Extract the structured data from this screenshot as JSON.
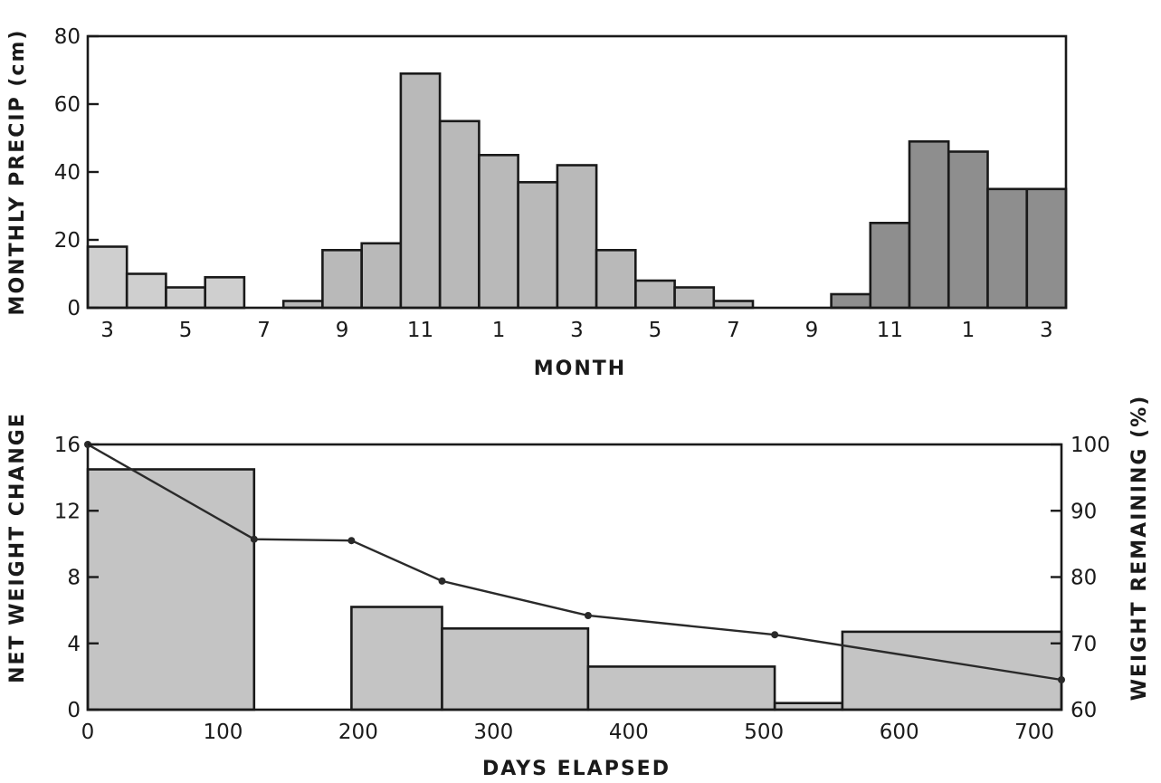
{
  "chart_data": [
    {
      "type": "bar",
      "ylabel": "MONTHLY PRECIP (cm)",
      "xlabel": "MONTH",
      "ylim": [
        0,
        80
      ],
      "yticks": [
        "0",
        "20",
        "40",
        "60",
        "80"
      ],
      "xtick_labels": [
        "3",
        "5",
        "7",
        "9",
        "11",
        "1",
        "3",
        "5",
        "7",
        "9",
        "11",
        "1",
        "3"
      ],
      "grid": false,
      "categories": [
        "3",
        "4",
        "5",
        "6",
        "7",
        "8",
        "9",
        "10",
        "11",
        "12",
        "1",
        "2",
        "3",
        "4",
        "5",
        "6",
        "7",
        "8",
        "9",
        "10",
        "11",
        "12",
        "1",
        "2",
        "3"
      ],
      "values": [
        18,
        10,
        6,
        9,
        0,
        2,
        17,
        19,
        69,
        55,
        45,
        37,
        42,
        17,
        8,
        6,
        2,
        0,
        0,
        4,
        25,
        49,
        46,
        35,
        35
      ],
      "shading": [
        "light",
        "light",
        "light",
        "light",
        "light",
        "medium",
        "medium",
        "medium",
        "medium",
        "medium",
        "medium",
        "medium",
        "medium",
        "medium",
        "medium",
        "medium",
        "medium",
        "medium",
        "medium",
        "dark",
        "dark",
        "dark",
        "dark",
        "dark",
        "dark"
      ],
      "colors": {
        "light": "#cfcfcf",
        "medium": "#b9b9b9",
        "dark": "#8e8e8e"
      }
    },
    {
      "type": "bar",
      "xlabel": "DAYS ELAPSED",
      "ylabel": "NET WEIGHT CHANGE",
      "ylabel_right": "WEIGHT REMAINING (%)",
      "xlim": [
        0,
        720
      ],
      "ylim": [
        0,
        16
      ],
      "ylim_right": [
        60,
        100
      ],
      "xticks": [
        "0",
        "100",
        "200",
        "300",
        "400",
        "500",
        "600",
        "700"
      ],
      "yticks": [
        "0",
        "4",
        "8",
        "12",
        "16"
      ],
      "yticks_right": [
        "60",
        "70",
        "80",
        "90",
        "100"
      ],
      "grid": false,
      "bars": [
        {
          "x0": 0,
          "x1": 123,
          "value": 14.5
        },
        {
          "x0": 123,
          "x1": 195,
          "value": 0
        },
        {
          "x0": 195,
          "x1": 262,
          "value": 6.2
        },
        {
          "x0": 262,
          "x1": 370,
          "value": 4.9
        },
        {
          "x0": 370,
          "x1": 508,
          "value": 2.6
        },
        {
          "x0": 508,
          "x1": 558,
          "value": 0.4
        },
        {
          "x0": 558,
          "x1": 720,
          "value": 4.7
        }
      ],
      "series": [
        {
          "x": [
            0,
            123,
            195,
            262,
            370,
            508,
            720
          ],
          "y": [
            100,
            85.7,
            85.5,
            79.4,
            74.2,
            71.3,
            64.5
          ],
          "axis": "right"
        }
      ],
      "colors": {
        "bar": "#c4c4c4",
        "line": "#2a2a2a"
      }
    }
  ]
}
